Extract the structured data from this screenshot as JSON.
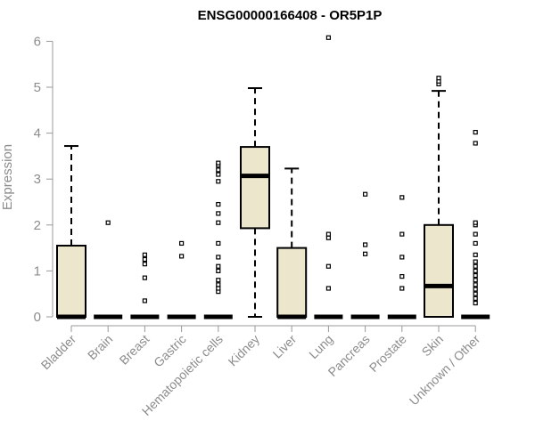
{
  "chart_data": {
    "type": "boxplot",
    "title": "ENSG00000166408 - OR5P1P",
    "xlabel": "",
    "ylabel": "Expression",
    "ylim": [
      0,
      6.2
    ],
    "yticks": [
      0,
      1,
      2,
      3,
      4,
      5,
      6
    ],
    "grid": false,
    "legend": "none",
    "box_color": "#ece7cc",
    "categories": [
      "Bladder",
      "Brain",
      "Breast",
      "Gastric",
      "Hematopoietic cells",
      "Kidney",
      "Liver",
      "Lung",
      "Pancreas",
      "Prostate",
      "Skin",
      "Unknown / Other"
    ],
    "boxes": [
      {
        "q1": 0,
        "median": 0,
        "q3": 1.55,
        "whisker_low": 0,
        "whisker_high": 3.72,
        "outliers": []
      },
      {
        "q1": 0,
        "median": 0,
        "q3": 0,
        "whisker_low": 0,
        "whisker_high": 0,
        "outliers": [
          2.05
        ]
      },
      {
        "q1": 0,
        "median": 0,
        "q3": 0,
        "whisker_low": 0,
        "whisker_high": 0,
        "outliers": [
          0.35,
          0.85,
          1.15,
          1.25,
          1.35
        ]
      },
      {
        "q1": 0,
        "median": 0,
        "q3": 0,
        "whisker_low": 0,
        "whisker_high": 0,
        "outliers": [
          1.32,
          1.6
        ]
      },
      {
        "q1": 0,
        "median": 0,
        "q3": 0,
        "whisker_low": 0,
        "whisker_high": 0,
        "outliers": [
          0.55,
          0.62,
          0.7,
          0.8,
          1.0,
          1.1,
          1.3,
          1.6,
          2.05,
          2.25,
          2.45,
          2.95,
          3.1,
          3.2,
          3.3,
          3.35
        ]
      },
      {
        "q1": 1.93,
        "median": 3.07,
        "q3": 3.7,
        "whisker_low": 0,
        "whisker_high": 4.98,
        "outliers": []
      },
      {
        "q1": 0,
        "median": 0,
        "q3": 1.5,
        "whisker_low": 0,
        "whisker_high": 3.23,
        "outliers": []
      },
      {
        "q1": 0,
        "median": 0,
        "q3": 0,
        "whisker_low": 0,
        "whisker_high": 0,
        "outliers": [
          0.62,
          1.1,
          1.72,
          1.8,
          6.08
        ]
      },
      {
        "q1": 0,
        "median": 0,
        "q3": 0,
        "whisker_low": 0,
        "whisker_high": 0,
        "outliers": [
          1.37,
          1.57,
          2.67
        ]
      },
      {
        "q1": 0,
        "median": 0,
        "q3": 0,
        "whisker_low": 0,
        "whisker_high": 0,
        "outliers": [
          0.62,
          0.88,
          1.3,
          1.8,
          2.6
        ]
      },
      {
        "q1": 0,
        "median": 0.67,
        "q3": 2.0,
        "whisker_low": 0,
        "whisker_high": 4.92,
        "outliers": [
          5.07,
          5.13,
          5.2
        ]
      },
      {
        "q1": 0,
        "median": 0,
        "q3": 0,
        "whisker_low": 0,
        "whisker_high": 0,
        "outliers": [
          0.3,
          0.4,
          0.5,
          0.6,
          0.7,
          0.8,
          0.9,
          1.0,
          1.1,
          1.2,
          1.35,
          1.6,
          1.8,
          2.0,
          2.05,
          3.78,
          4.02
        ]
      }
    ]
  }
}
